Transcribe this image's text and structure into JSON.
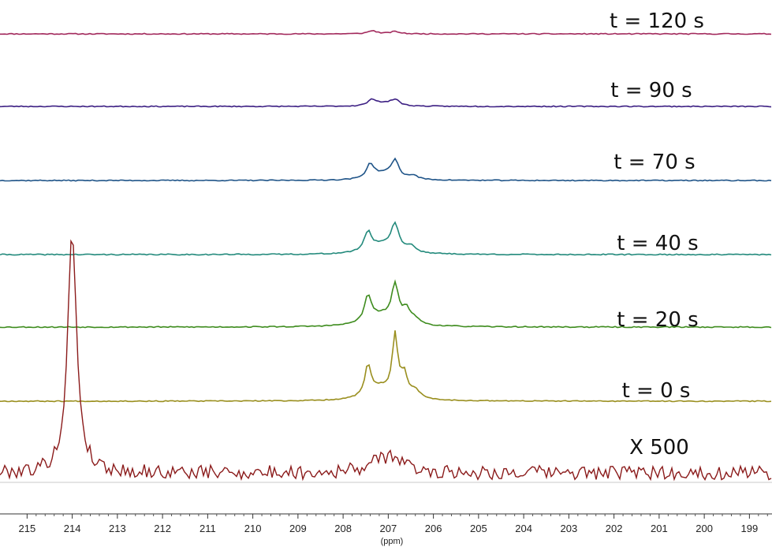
{
  "chart_data": {
    "type": "line",
    "title": "",
    "xlabel": "(ppm)",
    "ylabel": "",
    "x_axis": {
      "reversed": true,
      "xlim": [
        215.6,
        198.5
      ],
      "ticks": [
        215,
        214,
        213,
        212,
        211,
        210,
        209,
        208,
        207,
        206,
        205,
        204,
        203,
        202,
        201,
        200,
        199
      ]
    },
    "grid": false,
    "series": [
      {
        "name": "t = 120 s",
        "color": "#a2295c",
        "seed": 11,
        "noise": 0.6,
        "peaks": [
          {
            "x": 207.35,
            "h": 4,
            "w": 0.12
          },
          {
            "x": 206.85,
            "h": 3,
            "w": 0.12
          }
        ]
      },
      {
        "name": "t = 90 s",
        "color": "#3c1f83",
        "seed": 23,
        "noise": 0.6,
        "peaks": [
          {
            "x": 207.35,
            "h": 8,
            "w": 0.12
          },
          {
            "x": 206.85,
            "h": 8,
            "w": 0.12
          },
          {
            "x": 207.1,
            "h": 3,
            "w": 0.2
          }
        ]
      },
      {
        "name": "t = 70 s",
        "color": "#1f5488",
        "seed": 37,
        "noise": 0.6,
        "peaks": [
          {
            "x": 207.4,
            "h": 18,
            "w": 0.1
          },
          {
            "x": 206.85,
            "h": 22,
            "w": 0.1
          },
          {
            "x": 207.1,
            "h": 8,
            "w": 0.3
          },
          {
            "x": 206.45,
            "h": 5,
            "w": 0.12
          }
        ]
      },
      {
        "name": "t = 40 s",
        "color": "#238a7c",
        "seed": 41,
        "noise": 0.7,
        "peaks": [
          {
            "x": 207.45,
            "h": 24,
            "w": 0.1
          },
          {
            "x": 206.85,
            "h": 32,
            "w": 0.1
          },
          {
            "x": 207.1,
            "h": 12,
            "w": 0.35
          },
          {
            "x": 206.5,
            "h": 8,
            "w": 0.12
          }
        ]
      },
      {
        "name": "t = 20 s",
        "color": "#3e8c1e",
        "seed": 53,
        "noise": 0.7,
        "peaks": [
          {
            "x": 207.45,
            "h": 32,
            "w": 0.09
          },
          {
            "x": 206.85,
            "h": 45,
            "w": 0.09
          },
          {
            "x": 207.15,
            "h": 14,
            "w": 0.4
          },
          {
            "x": 206.6,
            "h": 18,
            "w": 0.1
          },
          {
            "x": 206.4,
            "h": 6,
            "w": 0.12
          }
        ]
      },
      {
        "name": "t = 0 s",
        "color": "#9a8f1f",
        "seed": 67,
        "noise": 0.6,
        "peaks": [
          {
            "x": 207.45,
            "h": 38,
            "w": 0.08
          },
          {
            "x": 206.85,
            "h": 74,
            "w": 0.07
          },
          {
            "x": 207.15,
            "h": 16,
            "w": 0.35
          },
          {
            "x": 206.65,
            "h": 28,
            "w": 0.09
          },
          {
            "x": 206.4,
            "h": 10,
            "w": 0.12
          }
        ]
      },
      {
        "name": "X 500",
        "color": "#8b1b1b",
        "seed": 79,
        "noise": 9,
        "peaks": [
          {
            "x": 214.0,
            "h": 305,
            "w": 0.12
          },
          {
            "x": 207.1,
            "h": 16,
            "w": 0.4
          },
          {
            "x": 206.85,
            "h": 10,
            "w": 0.2
          }
        ]
      }
    ]
  }
}
